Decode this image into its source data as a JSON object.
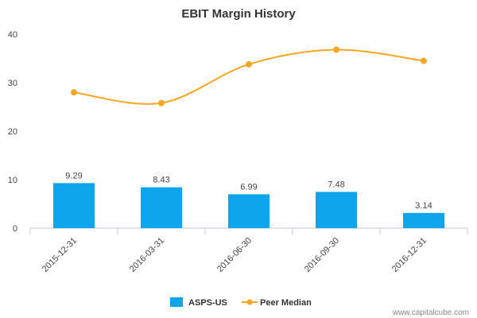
{
  "chart_data": {
    "type": "bar",
    "title": "EBIT Margin History",
    "categories": [
      "2015-12-31",
      "2016-03-31",
      "2016-06-30",
      "2016-09-30",
      "2016-12-31"
    ],
    "series": [
      {
        "name": "ASPS-US",
        "kind": "bar",
        "color": "#0ea5ec",
        "values": [
          9.29,
          8.43,
          6.99,
          7.48,
          3.14
        ],
        "labels": [
          "9.29",
          "8.43",
          "6.99",
          "7.48",
          "3.14"
        ]
      },
      {
        "name": "Peer Median",
        "kind": "line",
        "color": "#f5a623",
        "values": [
          28.0,
          25.8,
          33.8,
          36.8,
          34.5
        ]
      }
    ],
    "ylim": [
      0,
      40
    ],
    "yticks": [
      "0",
      "10",
      "20",
      "30",
      "40"
    ],
    "legend": "bottom-center",
    "grid": false
  },
  "credit": "www.capitalcube.com"
}
